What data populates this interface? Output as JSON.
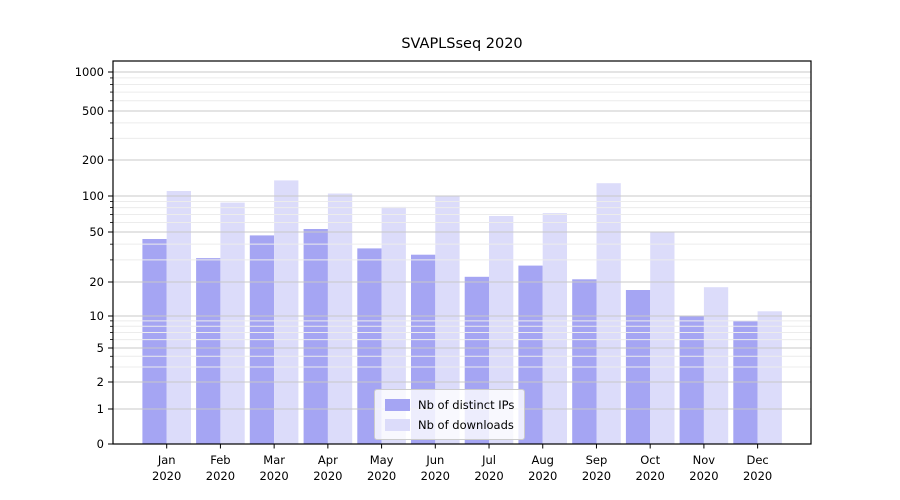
{
  "chart_data": {
    "type": "bar",
    "title": "SVAPLSseq 2020",
    "categories": [
      "Jan 2020",
      "Feb 2020",
      "Mar 2020",
      "Apr 2020",
      "May 2020",
      "Jun 2020",
      "Jul 2020",
      "Aug 2020",
      "Sep 2020",
      "Oct 2020",
      "Nov 2020",
      "Dec 2020"
    ],
    "series": [
      {
        "name": "Nb of distinct IPs",
        "color": "#a5a5f3",
        "values": [
          44,
          31,
          47,
          53,
          37,
          33,
          22,
          27,
          21,
          17,
          10,
          9
        ]
      },
      {
        "name": "Nb of downloads",
        "color": "#dcdcfa",
        "values": [
          110,
          88,
          135,
          105,
          81,
          100,
          68,
          72,
          128,
          50,
          18,
          11
        ]
      }
    ],
    "yscale": "symlog",
    "yticks": [
      0,
      1,
      2,
      5,
      10,
      20,
      50,
      100,
      200,
      500,
      1000
    ],
    "yminorticks": [
      3,
      4,
      6,
      7,
      8,
      9,
      30,
      40,
      60,
      70,
      80,
      90,
      300,
      400,
      600,
      700,
      800,
      900
    ],
    "ylim": [
      0,
      1000
    ],
    "xlabel": "",
    "ylabel": "",
    "grid": true,
    "grid_over_bars": true,
    "legend_position": "lower center"
  },
  "legend": {
    "items": [
      {
        "label": "Nb of distinct IPs",
        "color": "#a5a5f3"
      },
      {
        "label": "Nb of downloads",
        "color": "#dcdcfa"
      }
    ]
  },
  "colors": {
    "bar_dark": "#a5a5f3",
    "bar_light": "#dcdcfa",
    "major_grid": "#c8c8c8",
    "minor_grid": "#ececec",
    "axis": "#000000",
    "tick_text": "#000000"
  }
}
